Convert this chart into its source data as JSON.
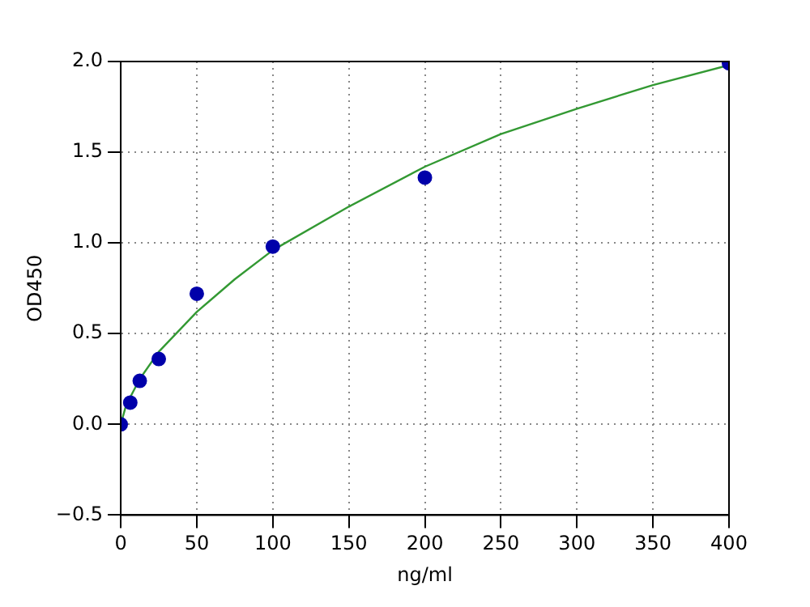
{
  "chart_data": {
    "type": "scatter",
    "xlabel": "ng/ml",
    "ylabel": "OD450",
    "xlim": [
      0,
      400
    ],
    "xticks": [
      0,
      50,
      100,
      150,
      200,
      250,
      300,
      350,
      400
    ],
    "ylim": [
      -0.5,
      2.0
    ],
    "yticks": [
      {
        "value": -0.5,
        "label": "−0.5"
      },
      {
        "value": 0,
        "label": "0.0"
      },
      {
        "value": 0.5,
        "label": "0.5"
      },
      {
        "value": 1,
        "label": "1.0"
      },
      {
        "value": 1.5,
        "label": "1.5"
      },
      {
        "value": 2,
        "label": "2.0"
      }
    ],
    "grid": true,
    "legend": false,
    "series": [
      {
        "type": "scatter",
        "color": "#0000aa",
        "marker": "circle",
        "x": [
          0,
          6.25,
          12.5,
          25,
          50,
          100,
          200,
          400
        ],
        "values": [
          0,
          0.12,
          0.24,
          0.36,
          0.72,
          0.98,
          1.36,
          1.99
        ]
      },
      {
        "type": "line",
        "color": "#339933",
        "marker": "none",
        "line_style": "solid",
        "x": [
          0,
          3,
          6.25,
          12.5,
          25,
          50,
          75,
          100,
          150,
          200,
          250,
          300,
          350,
          400
        ],
        "values": [
          0,
          0.09,
          0.15,
          0.25,
          0.4,
          0.62,
          0.8,
          0.96,
          1.2,
          1.42,
          1.6,
          1.74,
          1.87,
          1.98
        ]
      }
    ]
  }
}
